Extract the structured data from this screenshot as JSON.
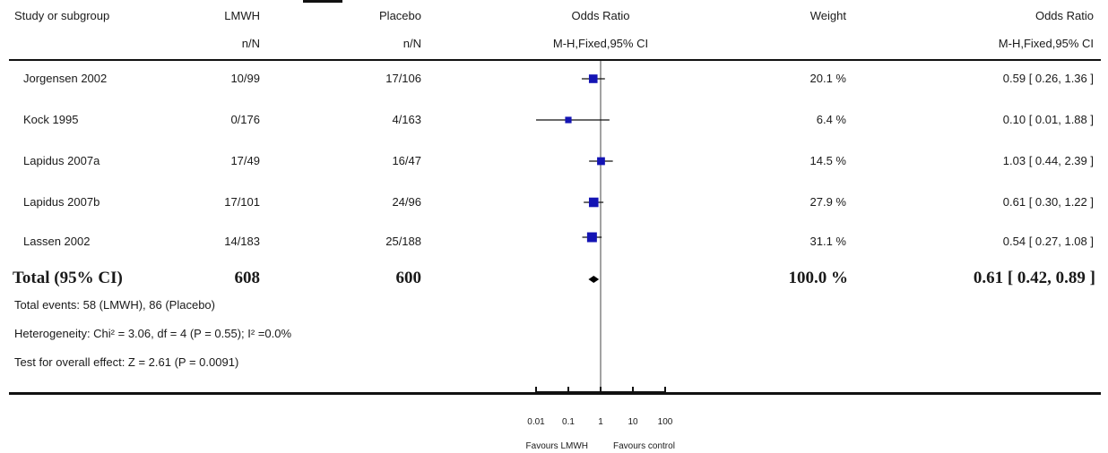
{
  "header": {
    "study_col": "Study or subgroup",
    "exp_col": "LMWH",
    "ctl_col": "Placebo",
    "exp_sub": "n/N",
    "ctl_sub": "n/N",
    "plot_col": "Odds Ratio",
    "plot_sub": "M-H,Fixed,95% CI",
    "weight_col": "Weight",
    "or_col": "Odds Ratio",
    "or_sub": "M-H,Fixed,95% CI"
  },
  "rows": [
    {
      "study": "Jorgensen 2002",
      "exp": "10/99",
      "ctl": "17/106",
      "weight": "20.1 %",
      "or_text": "0.59 [ 0.26, 1.36 ]"
    },
    {
      "study": "Kock 1995",
      "exp": "0/176",
      "ctl": "4/163",
      "weight": "6.4 %",
      "or_text": "0.10 [ 0.01, 1.88 ]"
    },
    {
      "study": "Lapidus 2007a",
      "exp": "17/49",
      "ctl": "16/47",
      "weight": "14.5 %",
      "or_text": "1.03 [ 0.44, 2.39 ]"
    },
    {
      "study": "Lapidus 2007b",
      "exp": "17/101",
      "ctl": "24/96",
      "weight": "27.9 %",
      "or_text": "0.61 [ 0.30, 1.22 ]"
    },
    {
      "study": "Lassen 2002",
      "exp": "14/183",
      "ctl": "25/188",
      "weight": "31.1 %",
      "or_text": "0.54 [ 0.27, 1.08 ]"
    }
  ],
  "total": {
    "label": "Total (95% CI)",
    "exp": "608",
    "ctl": "600",
    "weight": "100.0 %",
    "or_text": "0.61 [ 0.42, 0.89 ]"
  },
  "notes": {
    "events": "Total events: 58 (LMWH), 86 (Placebo)",
    "heterogeneity": "Heterogeneity: Chi² = 3.06, df = 4 (P = 0.55); I² =0.0%",
    "overall": "Test for overall effect: Z = 2.61 (P = 0.0091)"
  },
  "axis": {
    "ticks": [
      "0.01",
      "0.1",
      "1",
      "10",
      "100"
    ],
    "left_label": "Favours LMWH",
    "right_label": "Favours control"
  },
  "colors": {
    "marker": "#1414b4",
    "line": "#111111"
  },
  "chart_data": {
    "type": "forest",
    "scale": "log",
    "xlim": [
      0.01,
      100
    ],
    "reference_line": 1,
    "x_ticks": [
      0.01,
      0.1,
      1,
      10,
      100
    ],
    "series": [
      {
        "name": "Jorgensen 2002",
        "or": 0.59,
        "ci": [
          0.26,
          1.36
        ],
        "weight": 20.1
      },
      {
        "name": "Kock 1995",
        "or": 0.1,
        "ci": [
          0.01,
          1.88
        ],
        "weight": 6.4
      },
      {
        "name": "Lapidus 2007a",
        "or": 1.03,
        "ci": [
          0.44,
          2.39
        ],
        "weight": 14.5
      },
      {
        "name": "Lapidus 2007b",
        "or": 0.61,
        "ci": [
          0.3,
          1.22
        ],
        "weight": 27.9
      },
      {
        "name": "Lassen 2002",
        "or": 0.54,
        "ci": [
          0.27,
          1.08
        ],
        "weight": 31.1
      }
    ],
    "pooled": {
      "name": "Total (95% CI)",
      "or": 0.61,
      "ci": [
        0.42,
        0.89
      ],
      "weight": 100.0
    }
  }
}
